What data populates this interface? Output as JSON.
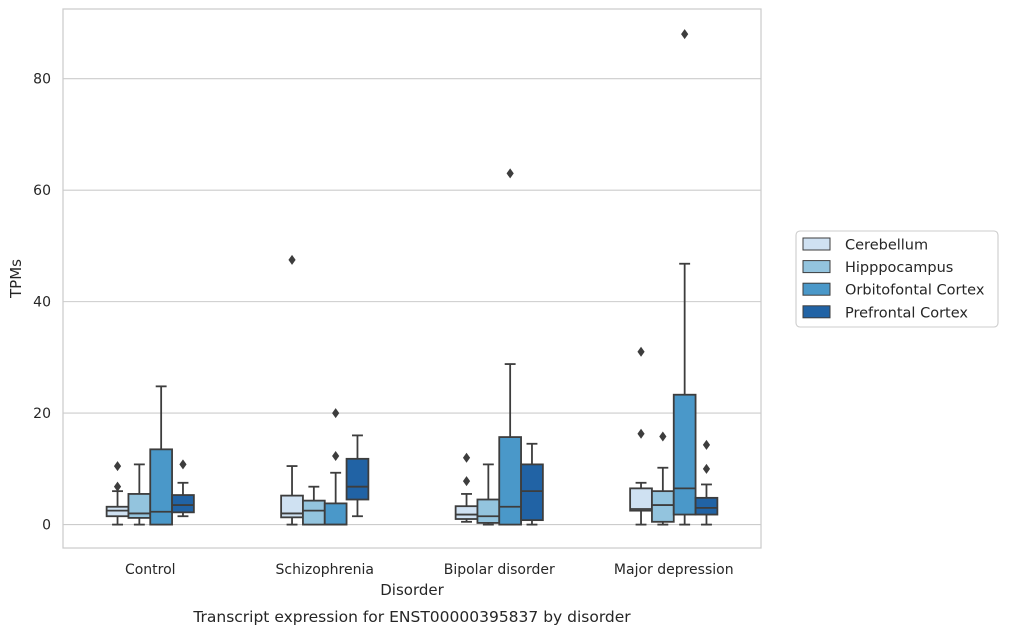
{
  "caption": "Transcript expression for ENST00000395837 by disorder",
  "chart_data": {
    "type": "box",
    "title": "",
    "xlabel": "Disorder",
    "ylabel": "TPMs",
    "ylim": [
      -4.2,
      92.5
    ],
    "yticks": [
      0,
      20,
      40,
      60,
      80
    ],
    "grid": "horizontal",
    "legend_position": "right",
    "categories": [
      "Control",
      "Schizophrenia",
      "Bipolar disorder",
      "Major depression"
    ],
    "series": [
      {
        "name": "Cerebellum",
        "color": "#cfe1f2",
        "boxes": [
          {
            "whisker_low": 0.0,
            "q1": 1.5,
            "median": 2.5,
            "q3": 3.2,
            "whisker_high": 6.0,
            "outliers": [
              6.8,
              10.5
            ]
          },
          {
            "whisker_low": 0.0,
            "q1": 1.3,
            "median": 2.0,
            "q3": 5.2,
            "whisker_high": 10.5,
            "outliers": [
              47.5
            ]
          },
          {
            "whisker_low": 0.5,
            "q1": 1.0,
            "median": 1.8,
            "q3": 3.3,
            "whisker_high": 5.5,
            "outliers": [
              7.8,
              12.0
            ]
          },
          {
            "whisker_low": 0.0,
            "q1": 2.5,
            "median": 2.8,
            "q3": 6.5,
            "whisker_high": 7.5,
            "outliers": [
              16.3,
              31.0
            ]
          }
        ]
      },
      {
        "name": "Hipppocampus",
        "color": "#93c4de",
        "boxes": [
          {
            "whisker_low": 0.0,
            "q1": 1.2,
            "median": 2.0,
            "q3": 5.5,
            "whisker_high": 10.8,
            "outliers": []
          },
          {
            "whisker_low": 0.0,
            "q1": 0.0,
            "median": 2.5,
            "q3": 4.3,
            "whisker_high": 6.8,
            "outliers": []
          },
          {
            "whisker_low": 0.0,
            "q1": 0.3,
            "median": 1.5,
            "q3": 4.5,
            "whisker_high": 10.8,
            "outliers": []
          },
          {
            "whisker_low": 0.0,
            "q1": 0.5,
            "median": 3.5,
            "q3": 6.0,
            "whisker_high": 10.2,
            "outliers": [
              15.8
            ]
          }
        ]
      },
      {
        "name": "Orbitofontal Cortex",
        "color": "#4a98c9",
        "boxes": [
          {
            "whisker_low": 0.0,
            "q1": 0.0,
            "median": 2.3,
            "q3": 13.5,
            "whisker_high": 24.8,
            "outliers": []
          },
          {
            "whisker_low": 0.0,
            "q1": 0.0,
            "median": 0.0,
            "q3": 3.8,
            "whisker_high": 9.3,
            "outliers": [
              12.3,
              20.0
            ]
          },
          {
            "whisker_low": 0.0,
            "q1": 0.0,
            "median": 3.2,
            "q3": 15.7,
            "whisker_high": 28.8,
            "outliers": [
              63.0
            ]
          },
          {
            "whisker_low": 0.0,
            "q1": 1.8,
            "median": 6.5,
            "q3": 23.3,
            "whisker_high": 46.8,
            "outliers": [
              88.0
            ]
          }
        ]
      },
      {
        "name": "Prefrontal Cortex",
        "color": "#2163a5",
        "boxes": [
          {
            "whisker_low": 1.5,
            "q1": 2.2,
            "median": 3.5,
            "q3": 5.3,
            "whisker_high": 7.5,
            "outliers": [
              10.8
            ]
          },
          {
            "whisker_low": 1.5,
            "q1": 4.5,
            "median": 6.8,
            "q3": 11.8,
            "whisker_high": 16.0,
            "outliers": []
          },
          {
            "whisker_low": 0.0,
            "q1": 0.8,
            "median": 6.0,
            "q3": 10.8,
            "whisker_high": 14.5,
            "outliers": []
          },
          {
            "whisker_low": 0.0,
            "q1": 1.8,
            "median": 3.0,
            "q3": 4.8,
            "whisker_high": 7.2,
            "outliers": [
              10.0,
              14.3
            ]
          }
        ]
      }
    ]
  }
}
